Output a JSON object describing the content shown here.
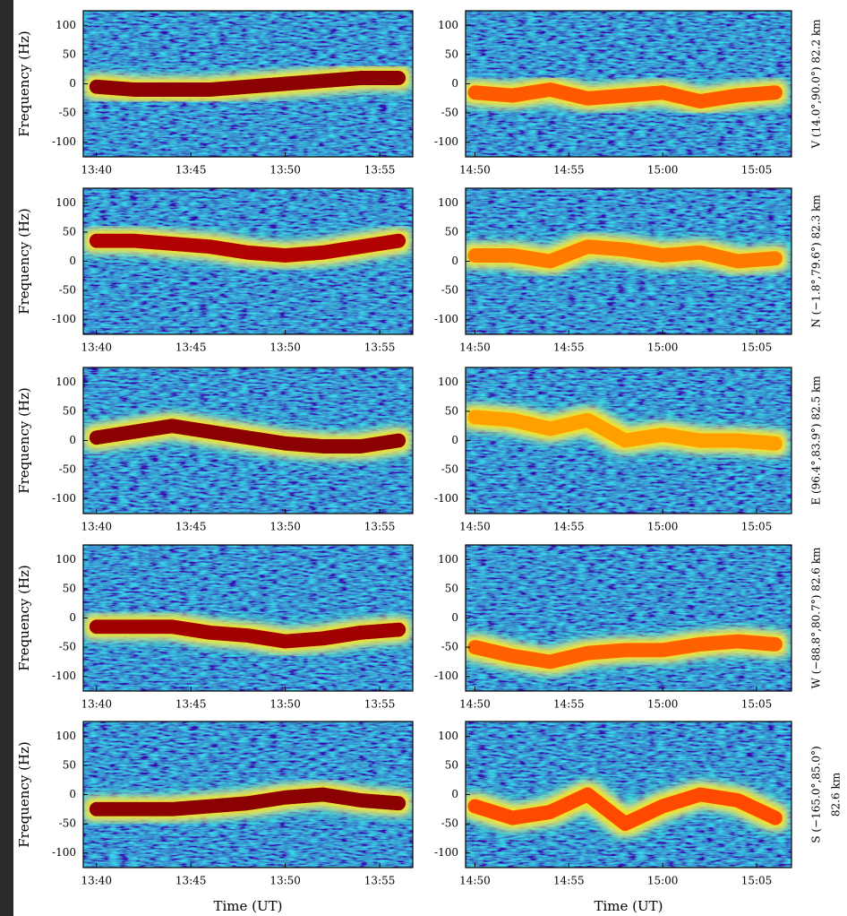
{
  "chart_data": [
    {
      "type": "line",
      "ylabel": "Frequency (Hz)",
      "x": [
        820,
        822,
        824,
        826,
        828,
        830,
        832,
        834,
        836
      ],
      "values": [
        -5,
        -10,
        -10,
        -10,
        -5,
        0,
        5,
        10,
        10
      ],
      "color": "#8b0000",
      "xlim": [
        819.3,
        836.75
      ],
      "ylim": [
        -125,
        125
      ],
      "xticks": [
        {
          "value": 820,
          "label": "13:40"
        },
        {
          "value": 825,
          "label": "13:45"
        },
        {
          "value": 830,
          "label": "13:50"
        },
        {
          "value": 835,
          "label": "13:55"
        }
      ],
      "yticks": [
        -100,
        -50,
        0,
        50,
        100
      ]
    },
    {
      "type": "line",
      "x": [
        890,
        892,
        894,
        896,
        898,
        900,
        902,
        904,
        906
      ],
      "values": [
        -15,
        -20,
        -10,
        -25,
        -20,
        -15,
        -30,
        -20,
        -15
      ],
      "color": "#ff5a00",
      "xlim": [
        889.5,
        906.86
      ],
      "ylim": [
        -125,
        125
      ],
      "xticks": [
        {
          "value": 890,
          "label": "14:50"
        },
        {
          "value": 895,
          "label": "14:55"
        },
        {
          "value": 900,
          "label": "15:00"
        },
        {
          "value": 905,
          "label": "15:05"
        }
      ],
      "yticks": [
        -100,
        -50,
        0,
        50,
        100
      ],
      "annotation": [
        "V (14.0°,90.0°) 82.2 km"
      ]
    },
    {
      "type": "line",
      "ylabel": "Frequency (Hz)",
      "x": [
        820,
        822,
        824,
        826,
        828,
        830,
        832,
        834,
        836
      ],
      "values": [
        35,
        35,
        30,
        25,
        15,
        10,
        15,
        25,
        35
      ],
      "color": "#b00000",
      "xlim": [
        819.3,
        836.75
      ],
      "ylim": [
        -125,
        125
      ],
      "xticks": [
        {
          "value": 820,
          "label": "13:40"
        },
        {
          "value": 825,
          "label": "13:45"
        },
        {
          "value": 830,
          "label": "13:50"
        },
        {
          "value": 835,
          "label": "13:55"
        }
      ],
      "yticks": [
        -100,
        -50,
        0,
        50,
        100
      ]
    },
    {
      "type": "line",
      "x": [
        890,
        892,
        894,
        896,
        898,
        900,
        902,
        904,
        906
      ],
      "values": [
        10,
        10,
        0,
        25,
        20,
        10,
        15,
        0,
        5
      ],
      "color": "#ff7a00",
      "xlim": [
        889.5,
        906.86
      ],
      "ylim": [
        -125,
        125
      ],
      "xticks": [
        {
          "value": 890,
          "label": "14:50"
        },
        {
          "value": 895,
          "label": "14:55"
        },
        {
          "value": 900,
          "label": "15:00"
        },
        {
          "value": 905,
          "label": "15:05"
        }
      ],
      "yticks": [
        -100,
        -50,
        0,
        50,
        100
      ],
      "annotation": [
        "N (−1.8°,79.6°) 82.3 km"
      ]
    },
    {
      "type": "line",
      "ylabel": "Frequency (Hz)",
      "x": [
        820,
        822,
        824,
        826,
        828,
        830,
        832,
        834,
        836
      ],
      "values": [
        5,
        15,
        25,
        15,
        5,
        -5,
        -10,
        -10,
        0
      ],
      "color": "#8b0000",
      "xlim": [
        819.3,
        836.75
      ],
      "ylim": [
        -125,
        125
      ],
      "xticks": [
        {
          "value": 820,
          "label": "13:40"
        },
        {
          "value": 825,
          "label": "13:45"
        },
        {
          "value": 830,
          "label": "13:50"
        },
        {
          "value": 835,
          "label": "13:55"
        }
      ],
      "yticks": [
        -100,
        -50,
        0,
        50,
        100
      ]
    },
    {
      "type": "line",
      "x": [
        890,
        892,
        894,
        896,
        898,
        900,
        902,
        904,
        906
      ],
      "values": [
        40,
        35,
        20,
        35,
        0,
        10,
        0,
        0,
        -5
      ],
      "color": "#ffa000",
      "xlim": [
        889.5,
        906.86
      ],
      "ylim": [
        -125,
        125
      ],
      "xticks": [
        {
          "value": 890,
          "label": "14:50"
        },
        {
          "value": 895,
          "label": "14:55"
        },
        {
          "value": 900,
          "label": "15:00"
        },
        {
          "value": 905,
          "label": "15:05"
        }
      ],
      "yticks": [
        -100,
        -50,
        0,
        50,
        100
      ],
      "annotation": [
        "E (96.4°,83.9°) 82.5 km"
      ]
    },
    {
      "type": "line",
      "ylabel": "Frequency (Hz)",
      "x": [
        820,
        822,
        824,
        826,
        828,
        830,
        832,
        834,
        836
      ],
      "values": [
        -15,
        -15,
        -15,
        -25,
        -30,
        -40,
        -35,
        -25,
        -20
      ],
      "color": "#a00000",
      "xlim": [
        819.3,
        836.75
      ],
      "ylim": [
        -125,
        125
      ],
      "xticks": [
        {
          "value": 820,
          "label": "13:40"
        },
        {
          "value": 825,
          "label": "13:45"
        },
        {
          "value": 830,
          "label": "13:50"
        },
        {
          "value": 835,
          "label": "13:55"
        }
      ],
      "yticks": [
        -100,
        -50,
        0,
        50,
        100
      ]
    },
    {
      "type": "line",
      "x": [
        890,
        892,
        894,
        896,
        898,
        900,
        902,
        904,
        906
      ],
      "values": [
        -50,
        -65,
        -75,
        -60,
        -55,
        -55,
        -45,
        -40,
        -45
      ],
      "color": "#ff6000",
      "xlim": [
        889.5,
        906.86
      ],
      "ylim": [
        -125,
        125
      ],
      "xticks": [
        {
          "value": 890,
          "label": "14:50"
        },
        {
          "value": 895,
          "label": "14:55"
        },
        {
          "value": 900,
          "label": "15:00"
        },
        {
          "value": 905,
          "label": "15:05"
        }
      ],
      "yticks": [
        -100,
        -50,
        0,
        50,
        100
      ],
      "annotation": [
        "W (−88.8°,80.7°) 82.6 km"
      ]
    },
    {
      "type": "line",
      "ylabel": "Frequency (Hz)",
      "xlabel": "Time (UT)",
      "x": [
        820,
        822,
        824,
        826,
        828,
        830,
        832,
        834,
        836
      ],
      "values": [
        -25,
        -25,
        -25,
        -20,
        -15,
        -5,
        0,
        -10,
        -15
      ],
      "color": "#8b0000",
      "xlim": [
        819.3,
        836.75
      ],
      "ylim": [
        -125,
        125
      ],
      "xticks": [
        {
          "value": 820,
          "label": "13:40"
        },
        {
          "value": 825,
          "label": "13:45"
        },
        {
          "value": 830,
          "label": "13:50"
        },
        {
          "value": 835,
          "label": "13:55"
        }
      ],
      "yticks": [
        -100,
        -50,
        0,
        50,
        100
      ]
    },
    {
      "type": "line",
      "xlabel": "Time (UT)",
      "x": [
        890,
        892,
        894,
        896,
        898,
        900,
        902,
        904,
        906
      ],
      "values": [
        -20,
        -40,
        -30,
        0,
        -50,
        -20,
        0,
        -10,
        -40
      ],
      "color": "#ff4a00",
      "xlim": [
        889.5,
        906.86
      ],
      "ylim": [
        -125,
        125
      ],
      "xticks": [
        {
          "value": 890,
          "label": "14:50"
        },
        {
          "value": 895,
          "label": "14:55"
        },
        {
          "value": 900,
          "label": "15:00"
        },
        {
          "value": 905,
          "label": "15:05"
        }
      ],
      "yticks": [
        -100,
        -50,
        0,
        50,
        100
      ],
      "annotation": [
        "S (−165.0°,85.0°)",
        "82.6 km"
      ]
    }
  ]
}
